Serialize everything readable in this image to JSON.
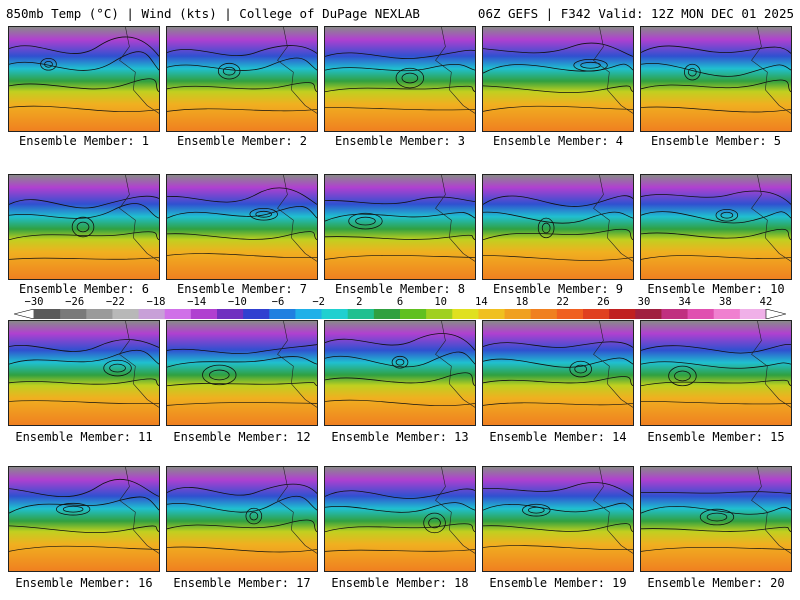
{
  "header": {
    "left": "850mb Temp (°C) | Wind (kts) | College of DuPage NEXLAB",
    "right": "06Z GEFS | F342 Valid: 12Z MON DEC 01 2025"
  },
  "members": [
    "Ensemble Member: 1",
    "Ensemble Member: 2",
    "Ensemble Member: 3",
    "Ensemble Member: 4",
    "Ensemble Member: 5",
    "Ensemble Member: 6",
    "Ensemble Member: 7",
    "Ensemble Member: 8",
    "Ensemble Member: 9",
    "Ensemble Member: 10",
    "Ensemble Member: 11",
    "Ensemble Member: 12",
    "Ensemble Member: 13",
    "Ensemble Member: 14",
    "Ensemble Member: 15",
    "Ensemble Member: 16",
    "Ensemble Member: 17",
    "Ensemble Member: 18",
    "Ensemble Member: 19",
    "Ensemble Member: 20"
  ],
  "colorbar": {
    "ticks": [
      "−30",
      "−26",
      "−22",
      "−18",
      "−14",
      "−10",
      "−6",
      "−2",
      "2",
      "6",
      "10",
      "14",
      "18",
      "22",
      "26",
      "30",
      "34",
      "38",
      "42"
    ],
    "colors": [
      "#5a5a5a",
      "#7a7a7a",
      "#9a9a9a",
      "#b8b8b8",
      "#c8a0d8",
      "#d070e8",
      "#b040d0",
      "#7030c0",
      "#3040d0",
      "#2080e0",
      "#20b0e8",
      "#20d0d0",
      "#20c090",
      "#30a040",
      "#60c020",
      "#a0d020",
      "#e0e020",
      "#f0c020",
      "#f0a020",
      "#f08020",
      "#f06020",
      "#e04020",
      "#c02020",
      "#a02040",
      "#c03080",
      "#e050b0",
      "#f080d0",
      "#f0b0e8"
    ]
  }
}
